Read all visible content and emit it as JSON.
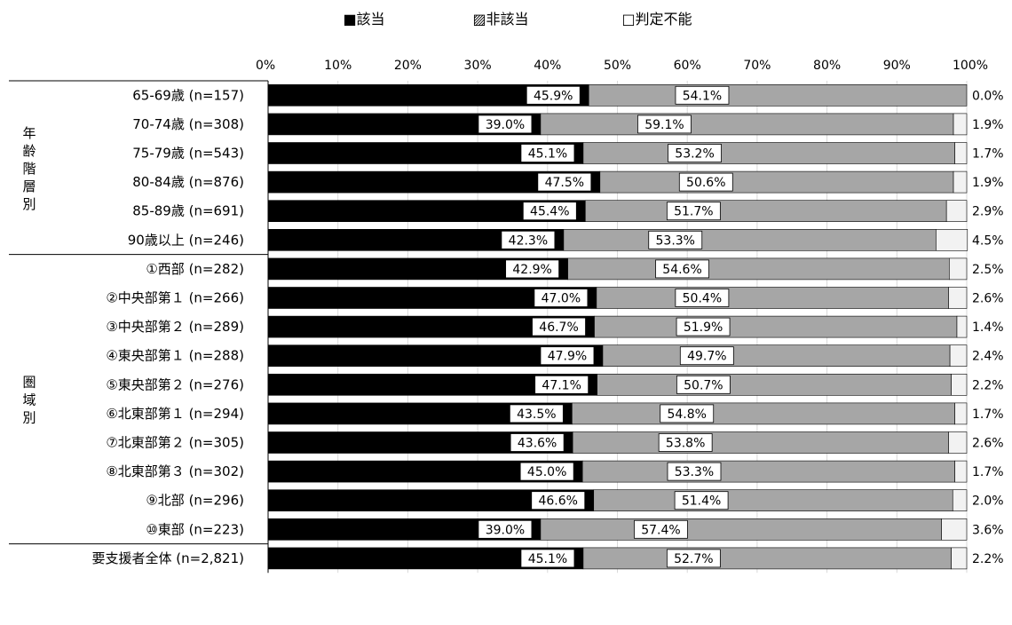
{
  "chart_data": {
    "type": "bar",
    "orientation": "horizontal",
    "stacked": true,
    "percent": true,
    "xlim": [
      0,
      100
    ],
    "x_ticks": [
      "0%",
      "10%",
      "20%",
      "30%",
      "40%",
      "50%",
      "60%",
      "70%",
      "80%",
      "90%",
      "100%"
    ],
    "legend": {
      "position": "top",
      "items": [
        {
          "label": "■該当",
          "color": "#000000"
        },
        {
          "label": "▨非該当",
          "color": "#a6a6a6"
        },
        {
          "label": "□判定不能",
          "color": "#f2f2f2"
        }
      ]
    },
    "groups": [
      {
        "label": "年齢階層別",
        "start": 0,
        "count": 6
      },
      {
        "label": "圏域別",
        "start": 6,
        "count": 10
      },
      {
        "label": "",
        "start": 16,
        "count": 1
      }
    ],
    "categories": [
      "65-69歳 (n=157)",
      "70-74歳 (n=308)",
      "75-79歳 (n=543)",
      "80-84歳 (n=876)",
      "85-89歳 (n=691)",
      "90歳以上 (n=246)",
      "①西部 (n=282)",
      "②中央部第１ (n=266)",
      "③中央部第２ (n=289)",
      "④東央部第１ (n=288)",
      "⑤東央部第２ (n=276)",
      "⑥北東部第１ (n=294)",
      "⑦北東部第２ (n=305)",
      "⑧北東部第３ (n=302)",
      "⑨北部 (n=296)",
      "⑩東部 (n=223)",
      "要支援者全体 (n=2,821)"
    ],
    "series": [
      {
        "name": "該当",
        "color": "#000000",
        "values": [
          45.9,
          39.0,
          45.1,
          47.5,
          45.4,
          42.3,
          42.9,
          47.0,
          46.7,
          47.9,
          47.1,
          43.5,
          43.6,
          45.0,
          46.6,
          39.0,
          45.1
        ],
        "labels": [
          "45.9%",
          "39.0%",
          "45.1%",
          "47.5%",
          "45.4%",
          "42.3%",
          "42.9%",
          "47.0%",
          "46.7%",
          "47.9%",
          "47.1%",
          "43.5%",
          "43.6%",
          "45.0%",
          "46.6%",
          "39.0%",
          "45.1%"
        ]
      },
      {
        "name": "非該当",
        "color": "#a6a6a6",
        "values": [
          54.1,
          59.1,
          53.2,
          50.6,
          51.7,
          53.3,
          54.6,
          50.4,
          51.9,
          49.7,
          50.7,
          54.8,
          53.8,
          53.3,
          51.4,
          57.4,
          52.7
        ],
        "labels": [
          "54.1%",
          "59.1%",
          "53.2%",
          "50.6%",
          "51.7%",
          "53.3%",
          "54.6%",
          "50.4%",
          "51.9%",
          "49.7%",
          "50.7%",
          "54.8%",
          "53.8%",
          "53.3%",
          "51.4%",
          "57.4%",
          "52.7%"
        ]
      },
      {
        "name": "判定不能",
        "color": "#f2f2f2",
        "values": [
          0.0,
          1.9,
          1.7,
          1.9,
          2.9,
          4.5,
          2.5,
          2.6,
          1.4,
          2.4,
          2.2,
          1.7,
          2.6,
          1.7,
          2.0,
          3.6,
          2.2
        ],
        "labels": [
          "0.0%",
          "1.9%",
          "1.7%",
          "1.9%",
          "2.9%",
          "4.5%",
          "2.5%",
          "2.6%",
          "1.4%",
          "2.4%",
          "2.2%",
          "1.7%",
          "2.6%",
          "1.7%",
          "2.0%",
          "3.6%",
          "2.2%"
        ]
      }
    ]
  }
}
